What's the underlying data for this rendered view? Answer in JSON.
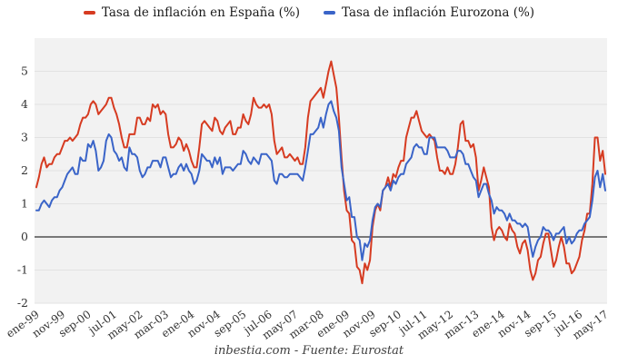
{
  "legend": {
    "spain": {
      "label": "Tasa de inflación en España (%)",
      "color": "#d63b21"
    },
    "eurozone": {
      "label": "Tasa de inflación Eurozona (%)",
      "color": "#3a64c8"
    }
  },
  "footer": {
    "text": "inbestia.com - Fuente: Eurostat"
  },
  "colors": {
    "plot_background": "#f2f2f2",
    "gridline": "#e2e2e2",
    "zero_line": "#4f4f4f",
    "tick_text": "#333333"
  },
  "chart_data": {
    "type": "line",
    "title": "",
    "xlabel": "",
    "ylabel": "",
    "x_unit": "month",
    "x_start": "ene-99",
    "x_end": "may-17",
    "x_tick_interval_months": 10,
    "x_tick_labels": [
      "ene-99",
      "nov-99",
      "sep-00",
      "jul-01",
      "may-02",
      "mar-03",
      "ene-04",
      "nov-04",
      "sep-05",
      "jul-06",
      "may-07",
      "mar-08",
      "ene-09",
      "nov-09",
      "sep-10",
      "jul-11",
      "may-12",
      "mar-13",
      "ene-14",
      "nov-14",
      "sep-15",
      "jul-16",
      "may-17"
    ],
    "y_ticks": [
      -2,
      -1,
      0,
      1,
      2,
      3,
      4,
      5
    ],
    "ylim": [
      -2,
      6
    ],
    "grid": true,
    "legend_position": "top",
    "series": [
      {
        "name": "Tasa de inflación en España (%)",
        "color": "#d63b21",
        "values": [
          1.5,
          1.8,
          2.2,
          2.4,
          2.1,
          2.2,
          2.2,
          2.4,
          2.5,
          2.5,
          2.7,
          2.9,
          2.9,
          3.0,
          2.9,
          3.0,
          3.1,
          3.4,
          3.6,
          3.6,
          3.7,
          4.0,
          4.1,
          4.0,
          3.7,
          3.8,
          3.9,
          4.0,
          4.2,
          4.2,
          3.9,
          3.7,
          3.4,
          3.0,
          2.7,
          2.7,
          3.1,
          3.1,
          3.1,
          3.6,
          3.6,
          3.4,
          3.4,
          3.6,
          3.5,
          4.0,
          3.9,
          4.0,
          3.7,
          3.8,
          3.7,
          3.1,
          2.7,
          2.7,
          2.8,
          3.0,
          2.9,
          2.6,
          2.8,
          2.6,
          2.3,
          2.1,
          2.1,
          2.7,
          3.4,
          3.5,
          3.4,
          3.3,
          3.2,
          3.6,
          3.5,
          3.2,
          3.1,
          3.3,
          3.4,
          3.5,
          3.1,
          3.1,
          3.3,
          3.3,
          3.7,
          3.5,
          3.4,
          3.7,
          4.2,
          4.0,
          3.9,
          3.9,
          4.0,
          3.9,
          4.0,
          3.7,
          2.9,
          2.5,
          2.6,
          2.7,
          2.4,
          2.4,
          2.5,
          2.4,
          2.3,
          2.4,
          2.2,
          2.2,
          2.7,
          3.6,
          4.1,
          4.2,
          4.3,
          4.4,
          4.5,
          4.2,
          4.6,
          5.0,
          5.3,
          4.9,
          4.5,
          3.6,
          2.4,
          1.4,
          0.8,
          0.7,
          -0.1,
          -0.2,
          -0.9,
          -1.0,
          -1.4,
          -0.8,
          -1.0,
          -0.7,
          0.3,
          0.8,
          1.0,
          0.8,
          1.4,
          1.5,
          1.8,
          1.5,
          1.9,
          1.8,
          2.1,
          2.3,
          2.3,
          3.0,
          3.3,
          3.6,
          3.6,
          3.8,
          3.5,
          3.2,
          3.1,
          3.0,
          3.1,
          3.0,
          2.9,
          2.4,
          2.0,
          2.0,
          1.9,
          2.1,
          1.9,
          1.9,
          2.2,
          2.7,
          3.4,
          3.5,
          2.9,
          2.9,
          2.7,
          2.8,
          2.4,
          1.4,
          1.7,
          2.1,
          1.8,
          1.5,
          0.3,
          -0.1,
          0.2,
          0.3,
          0.2,
          0.0,
          -0.1,
          0.4,
          0.2,
          0.1,
          -0.3,
          -0.5,
          -0.2,
          -0.1,
          -0.4,
          -1.0,
          -1.3,
          -1.1,
          -0.7,
          -0.6,
          -0.2,
          0.1,
          0.1,
          -0.4,
          -0.9,
          -0.7,
          -0.3,
          0.0,
          -0.3,
          -0.8,
          -0.8,
          -1.1,
          -1.0,
          -0.8,
          -0.6,
          -0.1,
          0.2,
          0.7,
          0.7,
          1.6,
          3.0,
          3.0,
          2.3,
          2.6,
          1.9
        ]
      },
      {
        "name": "Tasa de inflación Eurozona (%)",
        "color": "#3a64c8",
        "values": [
          0.8,
          0.8,
          1.0,
          1.1,
          1.0,
          0.9,
          1.1,
          1.2,
          1.2,
          1.4,
          1.5,
          1.7,
          1.9,
          2.0,
          2.1,
          1.9,
          1.9,
          2.4,
          2.3,
          2.3,
          2.8,
          2.7,
          2.9,
          2.6,
          2.0,
          2.1,
          2.3,
          2.9,
          3.1,
          3.0,
          2.6,
          2.5,
          2.3,
          2.4,
          2.1,
          2.0,
          2.7,
          2.5,
          2.5,
          2.4,
          2.0,
          1.8,
          1.9,
          2.1,
          2.1,
          2.3,
          2.3,
          2.3,
          2.1,
          2.4,
          2.4,
          2.1,
          1.8,
          1.9,
          1.9,
          2.1,
          2.2,
          2.0,
          2.2,
          2.0,
          1.9,
          1.6,
          1.7,
          2.0,
          2.5,
          2.4,
          2.3,
          2.3,
          2.1,
          2.4,
          2.2,
          2.4,
          1.9,
          2.1,
          2.1,
          2.1,
          2.0,
          2.1,
          2.2,
          2.2,
          2.6,
          2.5,
          2.3,
          2.2,
          2.4,
          2.3,
          2.2,
          2.5,
          2.5,
          2.5,
          2.4,
          2.3,
          1.7,
          1.6,
          1.9,
          1.9,
          1.8,
          1.8,
          1.9,
          1.9,
          1.9,
          1.9,
          1.8,
          1.7,
          2.1,
          2.6,
          3.1,
          3.1,
          3.2,
          3.3,
          3.6,
          3.3,
          3.7,
          4.0,
          4.1,
          3.8,
          3.6,
          3.2,
          2.1,
          1.6,
          1.1,
          1.2,
          0.6,
          0.6,
          0.0,
          -0.1,
          -0.7,
          -0.2,
          -0.3,
          -0.1,
          0.5,
          0.9,
          1.0,
          0.9,
          1.4,
          1.5,
          1.6,
          1.4,
          1.7,
          1.6,
          1.8,
          1.9,
          1.9,
          2.2,
          2.3,
          2.4,
          2.7,
          2.8,
          2.7,
          2.7,
          2.5,
          2.5,
          3.0,
          3.0,
          3.0,
          2.7,
          2.7,
          2.7,
          2.7,
          2.6,
          2.4,
          2.4,
          2.4,
          2.6,
          2.6,
          2.5,
          2.2,
          2.2,
          2.0,
          1.8,
          1.7,
          1.2,
          1.4,
          1.6,
          1.6,
          1.3,
          1.1,
          0.7,
          0.9,
          0.8,
          0.8,
          0.7,
          0.5,
          0.7,
          0.5,
          0.5,
          0.4,
          0.4,
          0.3,
          0.4,
          0.3,
          -0.2,
          -0.6,
          -0.3,
          -0.1,
          0.0,
          0.3,
          0.2,
          0.2,
          0.1,
          -0.1,
          0.1,
          0.1,
          0.2,
          0.3,
          -0.2,
          0.0,
          -0.2,
          -0.1,
          0.1,
          0.2,
          0.2,
          0.4,
          0.5,
          0.6,
          1.1,
          1.8,
          2.0,
          1.5,
          1.9,
          1.4
        ]
      }
    ]
  }
}
